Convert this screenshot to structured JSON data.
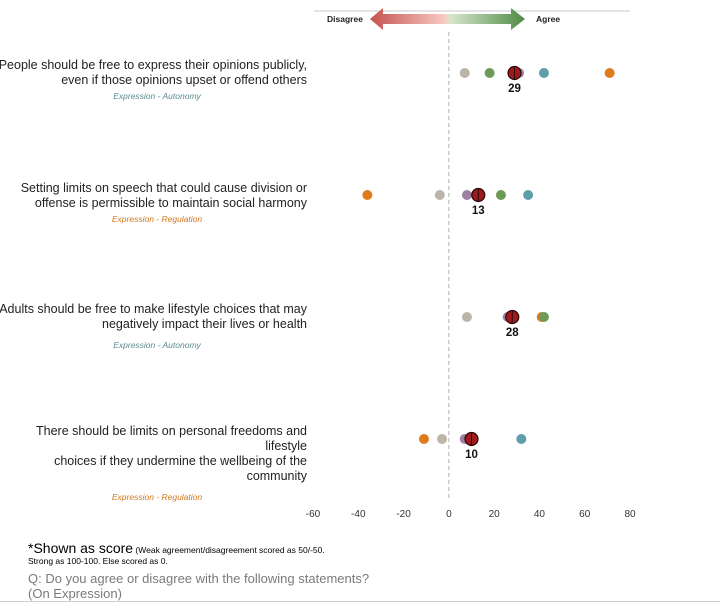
{
  "chart_data": {
    "type": "scatter",
    "title": "",
    "xlabel": "",
    "ylabel": "",
    "xlim": [
      -60,
      80
    ],
    "xticks": [
      -60,
      -40,
      -20,
      0,
      20,
      40,
      60,
      80
    ],
    "legend": {
      "disagree_label": "Disagree",
      "agree_label": "Agree"
    },
    "statements": [
      {
        "text_line1": "People should be free to express their opinions publicly,",
        "text_line2": "even if those opinions upset or offend others",
        "category": "Expression - Autonomy",
        "category_color": "#5b8a91",
        "overall": 29,
        "points": [
          {
            "x": 7,
            "color": "#bdb4a8"
          },
          {
            "x": 18,
            "color": "#6e9a57"
          },
          {
            "x": 31,
            "color": "#a07fa6"
          },
          {
            "x": 42,
            "color": "#5f9eab"
          },
          {
            "x": 71,
            "color": "#e07b1c"
          }
        ]
      },
      {
        "text_line1": "Setting limits on speech that could cause division or",
        "text_line2": "offense is permissible to maintain social harmony",
        "category": "Expression - Regulation",
        "category_color": "#d2771c",
        "overall": 13,
        "points": [
          {
            "x": -36,
            "color": "#e07b1c"
          },
          {
            "x": -4,
            "color": "#bdb4a8"
          },
          {
            "x": 8,
            "color": "#a07fa6"
          },
          {
            "x": 23,
            "color": "#6e9a57"
          },
          {
            "x": 35,
            "color": "#5f9eab"
          }
        ]
      },
      {
        "text_line1": "Adults should be free to make lifestyle choices that may",
        "text_line2": "negatively impact their lives or health",
        "category": "Expression - Autonomy",
        "category_color": "#5b8a91",
        "overall": 28,
        "points": [
          {
            "x": 8,
            "color": "#bdb4a8"
          },
          {
            "x": 26,
            "color": "#a07fa6"
          },
          {
            "x": 41,
            "color": "#e07b1c"
          },
          {
            "x": 42,
            "color": "#6e9a57"
          }
        ]
      },
      {
        "text_line1": "There should be limits on personal freedoms and lifestyle",
        "text_line2": "choices if they undermine the wellbeing of the community",
        "category": "Expression - Regulation",
        "category_color": "#d2771c",
        "overall": 10,
        "points": [
          {
            "x": -11,
            "color": "#e07b1c"
          },
          {
            "x": -3,
            "color": "#bdb4a8"
          },
          {
            "x": 7,
            "color": "#a07fa6"
          },
          {
            "x": 10,
            "color": "#6e9a57"
          },
          {
            "x": 32,
            "color": "#5f9eab"
          }
        ]
      }
    ]
  },
  "footnote": {
    "big": "*Shown as score",
    "small": " (Weak agreement/disagreement scored as 50/-50.",
    "line2": "Strong as 100-100. Else scored as 0."
  },
  "question": {
    "line1": "Q: Do you agree or disagree with the following statements?",
    "line2": "(On Expression)"
  }
}
